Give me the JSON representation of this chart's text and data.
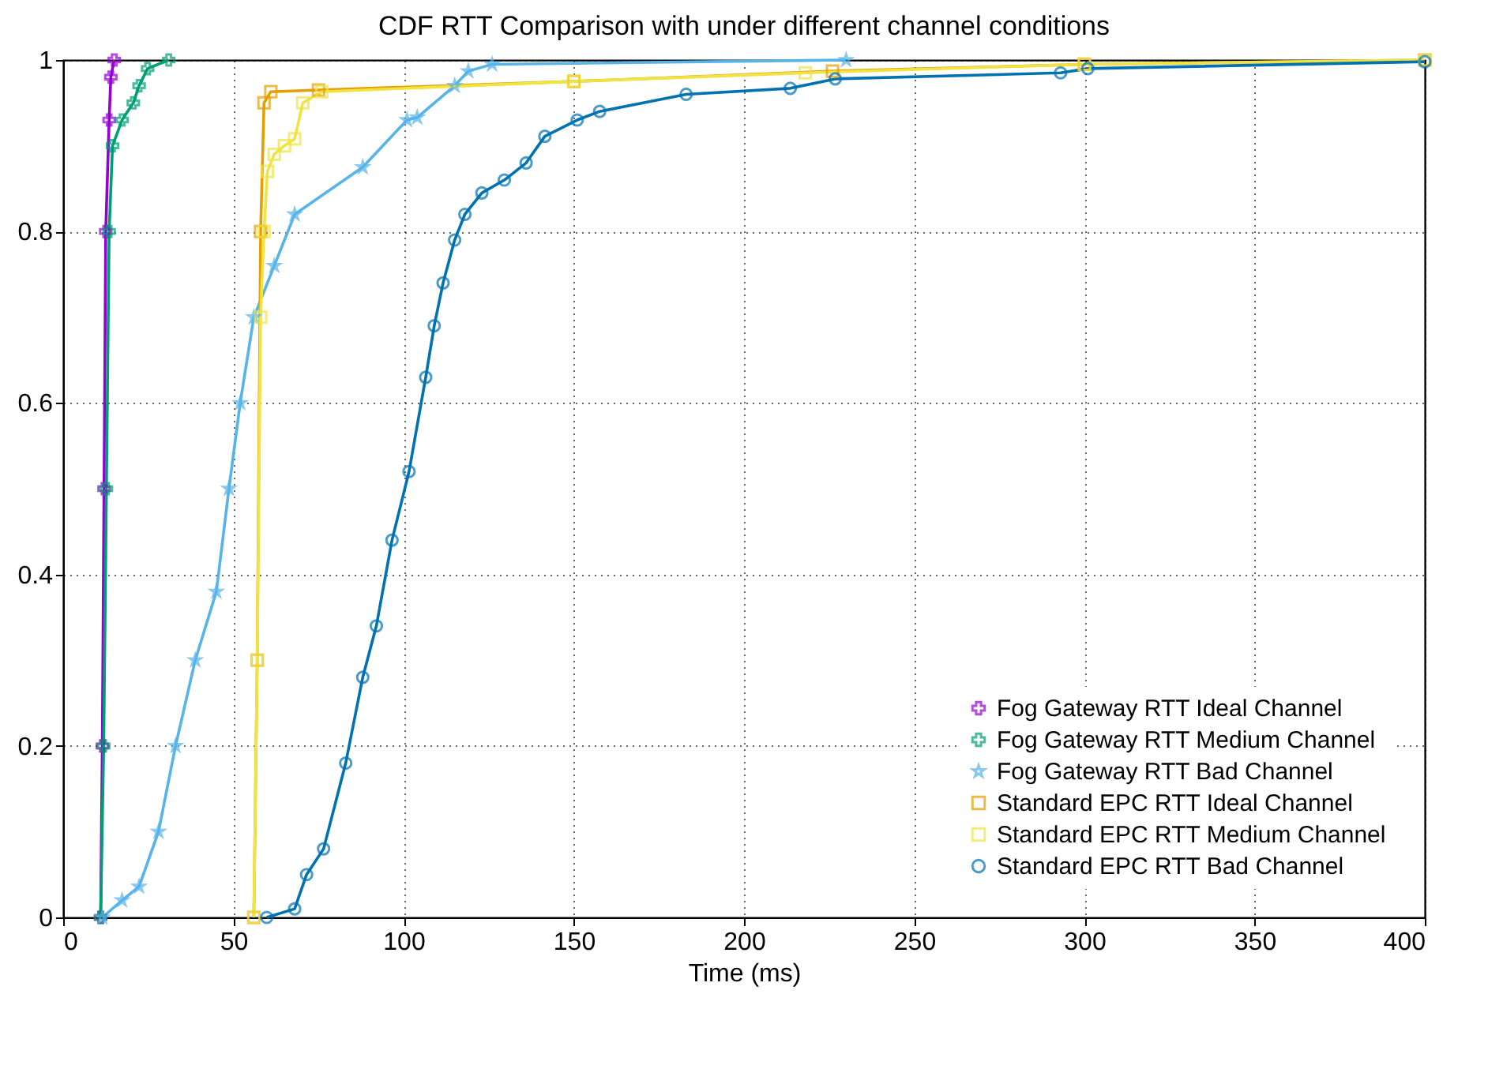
{
  "chart_data": {
    "type": "line",
    "title": "CDF RTT Comparison with under different channel conditions",
    "xlabel": "Time (ms)",
    "xlim": [
      0,
      400
    ],
    "xticks": [
      0,
      50,
      100,
      150,
      200,
      250,
      300,
      350,
      400
    ],
    "ylim": [
      0,
      1
    ],
    "yticks": [
      0,
      0.2,
      0.4,
      0.6,
      0.8,
      1
    ],
    "grid": true,
    "legend": "bottom right",
    "line_style": "solid",
    "series": [
      {
        "name": "Fog Gateway RTT Ideal Channel",
        "color": "#9400d3",
        "marker": "cross",
        "x": [
          11,
          11.5,
          12,
          12.5,
          13.5,
          14,
          15
        ],
        "values": [
          0,
          0.2,
          0.5,
          0.8,
          0.93,
          0.98,
          1
        ]
      },
      {
        "name": "Fog Gateway RTT Medium Channel",
        "color": "#009e73",
        "marker": "cross",
        "x": [
          11,
          11.9,
          12.7,
          13.5,
          14.5,
          17.3,
          20.6,
          22.3,
          24.8,
          31
        ],
        "values": [
          0,
          0.2,
          0.5,
          0.8,
          0.9,
          0.93,
          0.95,
          0.97,
          0.99,
          1
        ]
      },
      {
        "name": "Fog Gateway RTT Bad Channel",
        "color": "#56b4e9",
        "marker": "star",
        "x": [
          11.5,
          17.3,
          22.3,
          28,
          33,
          38.8,
          45,
          48.7,
          52,
          56,
          62,
          68,
          88,
          101,
          104,
          115,
          119,
          126,
          230
        ],
        "values": [
          0,
          0.02,
          0.036,
          0.1,
          0.2,
          0.3,
          0.38,
          0.5,
          0.6,
          0.7,
          0.76,
          0.82,
          0.875,
          0.93,
          0.933,
          0.97,
          0.987,
          0.995,
          1
        ]
      },
      {
        "name": "Standard EPC RTT Ideal Channel",
        "color": "#e69f00",
        "marker": "square",
        "x": [
          56,
          57,
          58,
          59,
          61,
          75,
          150,
          226,
          300,
          400
        ],
        "values": [
          0,
          0.3,
          0.8,
          0.95,
          0.963,
          0.965,
          0.975,
          0.987,
          0.995,
          1
        ]
      },
      {
        "name": "Standard EPC RTT Medium Channel",
        "color": "#f0e442",
        "marker": "square",
        "x": [
          56,
          57,
          58,
          59,
          60,
          62,
          65,
          68,
          70.4,
          76,
          150,
          218,
          300,
          400
        ],
        "values": [
          0,
          0.3,
          0.7,
          0.8,
          0.87,
          0.89,
          0.9,
          0.908,
          0.95,
          0.963,
          0.975,
          0.985,
          0.995,
          1
        ]
      },
      {
        "name": "Standard EPC RTT Bad Channel",
        "color": "#0072b2",
        "marker": "circle",
        "x": [
          59.8,
          68,
          71.5,
          76.5,
          83,
          88,
          92,
          96.6,
          101.6,
          106.5,
          109,
          111.6,
          115,
          118,
          123,
          129.6,
          136,
          141.5,
          151,
          157.6,
          183,
          213.6,
          226.8,
          293,
          301,
          400
        ],
        "values": [
          0,
          0.01,
          0.05,
          0.08,
          0.18,
          0.28,
          0.34,
          0.44,
          0.52,
          0.63,
          0.69,
          0.74,
          0.79,
          0.82,
          0.845,
          0.86,
          0.88,
          0.911,
          0.93,
          0.94,
          0.96,
          0.967,
          0.978,
          0.985,
          0.99,
          0.998
        ]
      }
    ]
  }
}
